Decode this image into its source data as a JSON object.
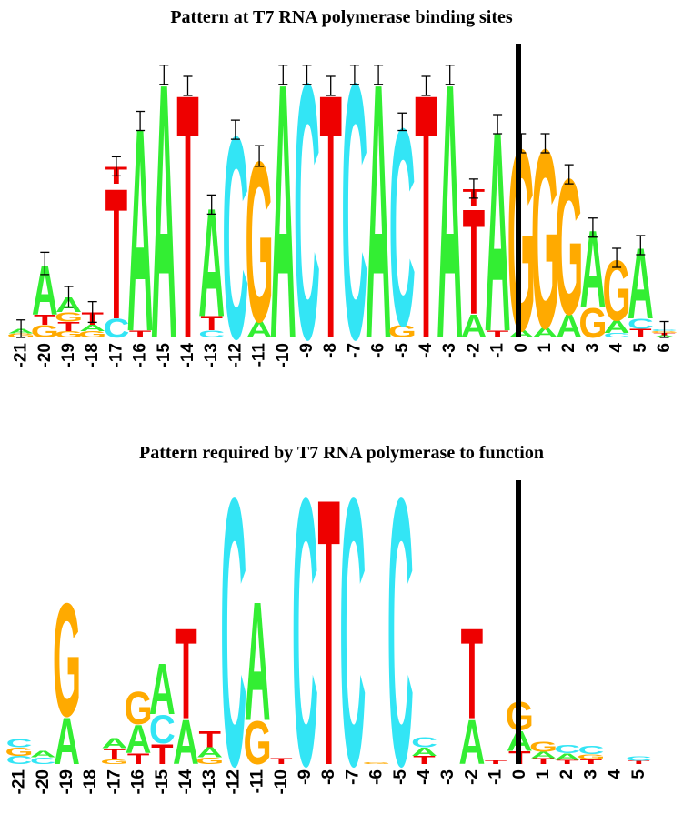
{
  "colors": {
    "A": "#33ee33",
    "C": "#33e5f5",
    "G": "#ffaa00",
    "T": "#ee0000",
    "divider": "#000000"
  },
  "panels": [
    {
      "title": "Pattern at T7 RNA polymerase binding sites",
      "error_bars": true,
      "positions": [
        {
          "label": "-21",
          "stack": [
            [
              "G",
              0.05
            ],
            [
              "A",
              0.06
            ]
          ],
          "top": 0.11,
          "err": 0.11
        },
        {
          "label": "-20",
          "stack": [
            [
              "G",
              0.16
            ],
            [
              "T",
              0.13
            ],
            [
              "A",
              0.64
            ]
          ],
          "top": 0.93,
          "err": 0.14
        },
        {
          "label": "-19",
          "stack": [
            [
              "G",
              0.08
            ],
            [
              "T",
              0.12
            ],
            [
              "G",
              0.12
            ],
            [
              "A",
              0.19
            ]
          ],
          "top": 0.51,
          "err": 0.13
        },
        {
          "label": "-18",
          "stack": [
            [
              "G",
              0.08
            ],
            [
              "A",
              0.08
            ],
            [
              "T",
              0.16
            ]
          ],
          "top": 0.32,
          "err": 0.13
        },
        {
          "label": "-17",
          "stack": [
            [
              "C",
              0.24
            ],
            [
              "T",
              1.69
            ],
            [
              "T",
              0.22
            ]
          ],
          "top": 2.15,
          "err": 0.12
        },
        {
          "label": "-16",
          "stack": [
            [
              "T",
              0.09
            ],
            [
              "A",
              2.63
            ]
          ],
          "top": 2.72,
          "err": 0.12
        },
        {
          "label": "-15",
          "stack": [
            [
              "A",
              3.3
            ]
          ],
          "top": 3.3,
          "err": 0.12
        },
        {
          "label": "-14",
          "stack": [
            [
              "T",
              3.16
            ]
          ],
          "top": 3.16,
          "err": 0.12
        },
        {
          "label": "-13",
          "stack": [
            [
              "C",
              0.09
            ],
            [
              "T",
              0.18
            ],
            [
              "A",
              1.4
            ]
          ],
          "top": 1.67,
          "err": 0.12
        },
        {
          "label": "-12",
          "stack": [
            [
              "C",
              2.61
            ]
          ],
          "top": 2.61,
          "err": 0.12
        },
        {
          "label": "-11",
          "stack": [
            [
              "A",
              0.21
            ],
            [
              "G",
              2.07
            ]
          ],
          "top": 2.28,
          "err": 0.13
        },
        {
          "label": "-10",
          "stack": [
            [
              "A",
              3.3
            ]
          ],
          "top": 3.3,
          "err": 0.12
        },
        {
          "label": "-9",
          "stack": [
            [
              "C",
              3.3
            ]
          ],
          "top": 3.3,
          "err": 0.12
        },
        {
          "label": "-8",
          "stack": [
            [
              "T",
              3.16
            ]
          ],
          "top": 3.16,
          "err": 0.12
        },
        {
          "label": "-7",
          "stack": [
            [
              "C",
              3.3
            ]
          ],
          "top": 3.3,
          "err": 0.12
        },
        {
          "label": "-6",
          "stack": [
            [
              "A",
              3.3
            ]
          ],
          "top": 3.3,
          "err": 0.12
        },
        {
          "label": "-5",
          "stack": [
            [
              "G",
              0.16
            ],
            [
              "C",
              2.55
            ]
          ],
          "top": 2.71,
          "err": 0.11
        },
        {
          "label": "-4",
          "stack": [
            [
              "T",
              3.16
            ]
          ],
          "top": 3.16,
          "err": 0.12
        },
        {
          "label": "-3",
          "stack": [
            [
              "A",
              3.3
            ]
          ],
          "top": 3.3,
          "err": 0.12
        },
        {
          "label": "-2",
          "stack": [
            [
              "A",
              0.3
            ],
            [
              "T",
              1.36
            ],
            [
              "T",
              0.21
            ]
          ],
          "top": 1.87,
          "err": 0.12
        },
        {
          "label": "-1",
          "stack": [
            [
              "T",
              0.09
            ],
            [
              "A",
              2.59
            ]
          ],
          "top": 2.68,
          "err": 0.12
        },
        {
          "label": "0",
          "stack": [
            [
              "A",
              0.1
            ],
            [
              "G",
              2.34
            ]
          ],
          "top": 2.44,
          "err": 0.12
        },
        {
          "label": "1",
          "stack": [
            [
              "A",
              0.13
            ],
            [
              "G",
              2.31
            ]
          ],
          "top": 2.44,
          "err": 0.12
        },
        {
          "label": "2",
          "stack": [
            [
              "A",
              0.3
            ],
            [
              "G",
              1.75
            ]
          ],
          "top": 2.05,
          "err": 0.12
        },
        {
          "label": "3",
          "stack": [
            [
              "G",
              0.38
            ],
            [
              "A",
              1.0
            ]
          ],
          "top": 1.38,
          "err": 0.12
        },
        {
          "label": "4",
          "stack": [
            [
              "C",
              0.06
            ],
            [
              "A",
              0.16
            ],
            [
              "G",
              0.78
            ]
          ],
          "top": 1.0,
          "err": 0.12
        },
        {
          "label": "5",
          "stack": [
            [
              "T",
              0.11
            ],
            [
              "C",
              0.13
            ],
            [
              "A",
              0.92
            ]
          ],
          "top": 1.16,
          "err": 0.12
        },
        {
          "label": "6",
          "stack": [
            [
              "A",
              0.03
            ],
            [
              "T",
              0.03
            ],
            [
              "G",
              0.02
            ],
            [
              "C",
              0.02
            ]
          ],
          "top": 0.1,
          "err": 0.1
        }
      ]
    },
    {
      "title": "Pattern required by T7 RNA polymerase to function",
      "error_bars": false,
      "positions": [
        {
          "label": "-21",
          "stack": [
            [
              "C",
              0.1
            ],
            [
              "G",
              0.1
            ],
            [
              "C",
              0.1
            ]
          ],
          "top": 0.3
        },
        {
          "label": "-20",
          "stack": [
            [
              "C",
              0.08
            ],
            [
              "A",
              0.08
            ]
          ],
          "top": 0.16
        },
        {
          "label": "-19",
          "stack": [
            [
              "A",
              0.58
            ],
            [
              "G",
              1.4
            ]
          ],
          "top": 1.98
        },
        {
          "label": "-18",
          "stack": [],
          "top": 0
        },
        {
          "label": "-17",
          "stack": [
            [
              "G",
              0.06
            ],
            [
              "T",
              0.13
            ],
            [
              "A",
              0.12
            ]
          ],
          "top": 0.31
        },
        {
          "label": "-16",
          "stack": [
            [
              "T",
              0.13
            ],
            [
              "A",
              0.35
            ],
            [
              "G",
              0.4
            ]
          ],
          "top": 0.88
        },
        {
          "label": "-15",
          "stack": [
            [
              "T",
              0.25
            ],
            [
              "C",
              0.35
            ],
            [
              "A",
              0.63
            ]
          ],
          "top": 1.23
        },
        {
          "label": "-14",
          "stack": [
            [
              "A",
              0.55
            ],
            [
              "T",
              1.12
            ]
          ],
          "top": 1.67
        },
        {
          "label": "-13",
          "stack": [
            [
              "G",
              0.08
            ],
            [
              "A",
              0.12
            ],
            [
              "T",
              0.2
            ]
          ],
          "top": 0.4
        },
        {
          "label": "-12",
          "stack": [
            [
              "C",
              3.3
            ]
          ],
          "top": 3.3
        },
        {
          "label": "-11",
          "stack": [
            [
              "G",
              0.53
            ],
            [
              "A",
              1.47
            ]
          ],
          "top": 2.0
        },
        {
          "label": "-10",
          "stack": [
            [
              "T",
              0.07
            ]
          ],
          "top": 0.07
        },
        {
          "label": "-9",
          "stack": [
            [
              "C",
              3.3
            ]
          ],
          "top": 3.3
        },
        {
          "label": "-8",
          "stack": [
            [
              "T",
              3.3
            ]
          ],
          "top": 3.3
        },
        {
          "label": "-7",
          "stack": [
            [
              "C",
              3.3
            ]
          ],
          "top": 3.3
        },
        {
          "label": "-6",
          "stack": [
            [
              "G",
              0.02
            ]
          ],
          "top": 0.02
        },
        {
          "label": "-5",
          "stack": [
            [
              "C",
              3.3
            ]
          ],
          "top": 3.3
        },
        {
          "label": "-4",
          "stack": [
            [
              "T",
              0.1
            ],
            [
              "A",
              0.1
            ],
            [
              "C",
              0.12
            ]
          ],
          "top": 0.32
        },
        {
          "label": "-3",
          "stack": [],
          "top": 0
        },
        {
          "label": "-2",
          "stack": [
            [
              "A",
              0.55
            ],
            [
              "T",
              1.12
            ]
          ],
          "top": 1.67
        },
        {
          "label": "-1",
          "stack": [
            [
              "T",
              0.04
            ]
          ],
          "top": 0.04
        },
        {
          "label": "0",
          "stack": [
            [
              "T",
              0.16
            ],
            [
              "A",
              0.25
            ],
            [
              "G",
              0.35
            ]
          ],
          "top": 0.76
        },
        {
          "label": "1",
          "stack": [
            [
              "T",
              0.07
            ],
            [
              "A",
              0.08
            ],
            [
              "G",
              0.12
            ]
          ],
          "top": 0.27
        },
        {
          "label": "2",
          "stack": [
            [
              "T",
              0.05
            ],
            [
              "A",
              0.08
            ],
            [
              "C",
              0.1
            ]
          ],
          "top": 0.23
        },
        {
          "label": "3",
          "stack": [
            [
              "T",
              0.06
            ],
            [
              "G",
              0.06
            ],
            [
              "C",
              0.1
            ]
          ],
          "top": 0.22
        },
        {
          "label": "4",
          "stack": [],
          "top": 0
        },
        {
          "label": "5",
          "stack": [
            [
              "T",
              0.04
            ],
            [
              "C",
              0.06
            ]
          ],
          "top": 0.1
        }
      ]
    }
  ]
}
